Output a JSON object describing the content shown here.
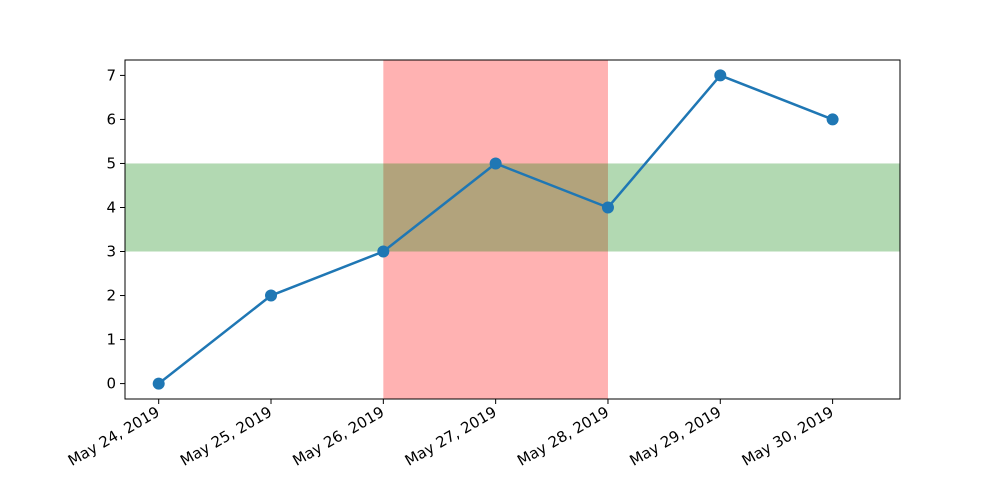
{
  "chart_data": {
    "type": "line",
    "title": "",
    "xlabel": "",
    "ylabel": "",
    "x": [
      "May 24, 2019",
      "May 25, 2019",
      "May 26, 2019",
      "May 27, 2019",
      "May 28, 2019",
      "May 29, 2019",
      "May 30, 2019"
    ],
    "series": [
      {
        "values": [
          0,
          2,
          3,
          5,
          4,
          7,
          6
        ],
        "color": "#1f77b4",
        "marker": "circle"
      }
    ],
    "xlim": [
      "May 23, 2019 (approx. 0.7 day before first tick)",
      "May 30, 2019 (approx. 0.3 day after last tick)"
    ],
    "ylim": [
      -0.35,
      7.35
    ],
    "yticks": [
      "0",
      "1",
      "2",
      "3",
      "4",
      "5",
      "6",
      "7"
    ],
    "grid": false,
    "legend": "none",
    "x_tick_rotation": "30 degrees",
    "spans": [
      {
        "orientation": "vertical",
        "from": "May 26, 2019",
        "to": "May 28, 2019",
        "color": "#ff0000",
        "alpha": 0.3
      },
      {
        "orientation": "horizontal",
        "from": 3,
        "to": 5,
        "color": "#008000",
        "alpha": 0.3
      }
    ]
  }
}
